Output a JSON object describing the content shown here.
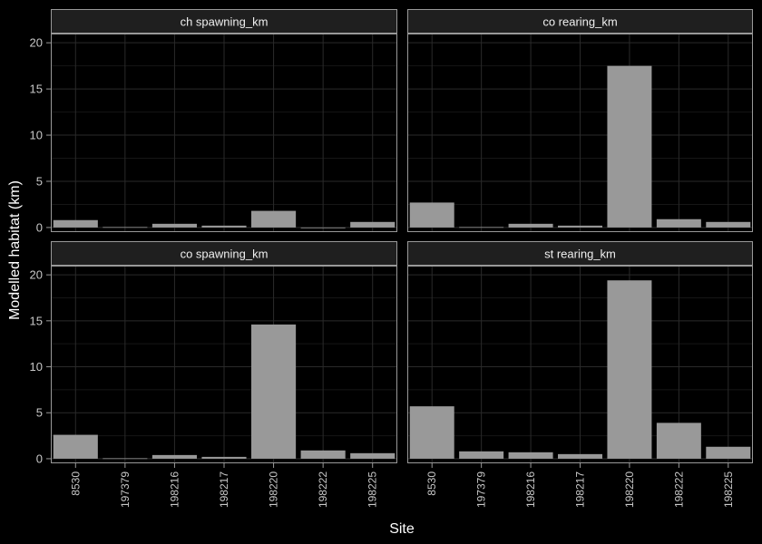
{
  "chart_data": {
    "type": "bar",
    "facets": [
      "ch spawning_km",
      "co rearing_km",
      "co spawning_km",
      "st rearing_km"
    ],
    "categories": [
      "8530",
      "197379",
      "198216",
      "198217",
      "198220",
      "198222",
      "198225"
    ],
    "series": [
      {
        "facet": "ch spawning_km",
        "values": [
          0.8,
          0.05,
          0.4,
          0.2,
          1.8,
          0,
          0.6
        ]
      },
      {
        "facet": "co rearing_km",
        "values": [
          2.7,
          0.05,
          0.4,
          0.2,
          17.5,
          0.9,
          0.6
        ]
      },
      {
        "facet": "co spawning_km",
        "values": [
          2.6,
          0.05,
          0.4,
          0.2,
          14.6,
          0.9,
          0.6
        ]
      },
      {
        "facet": "st rearing_km",
        "values": [
          5.7,
          0.8,
          0.7,
          0.5,
          19.4,
          3.9,
          1.3
        ]
      }
    ],
    "xlabel": "Site",
    "ylabel": "Modelled habitat (km)",
    "ylim": [
      -0.5,
      21
    ],
    "yticks": [
      0,
      5,
      10,
      15,
      20
    ],
    "grid": true,
    "legend": "none",
    "colors": {
      "background": "#000000",
      "panel": "#000000",
      "strip": "#1f1f1f",
      "bar": "#999999",
      "grid_major": "#2a2a2a",
      "grid_minor": "#161616",
      "border": "#999999"
    }
  }
}
